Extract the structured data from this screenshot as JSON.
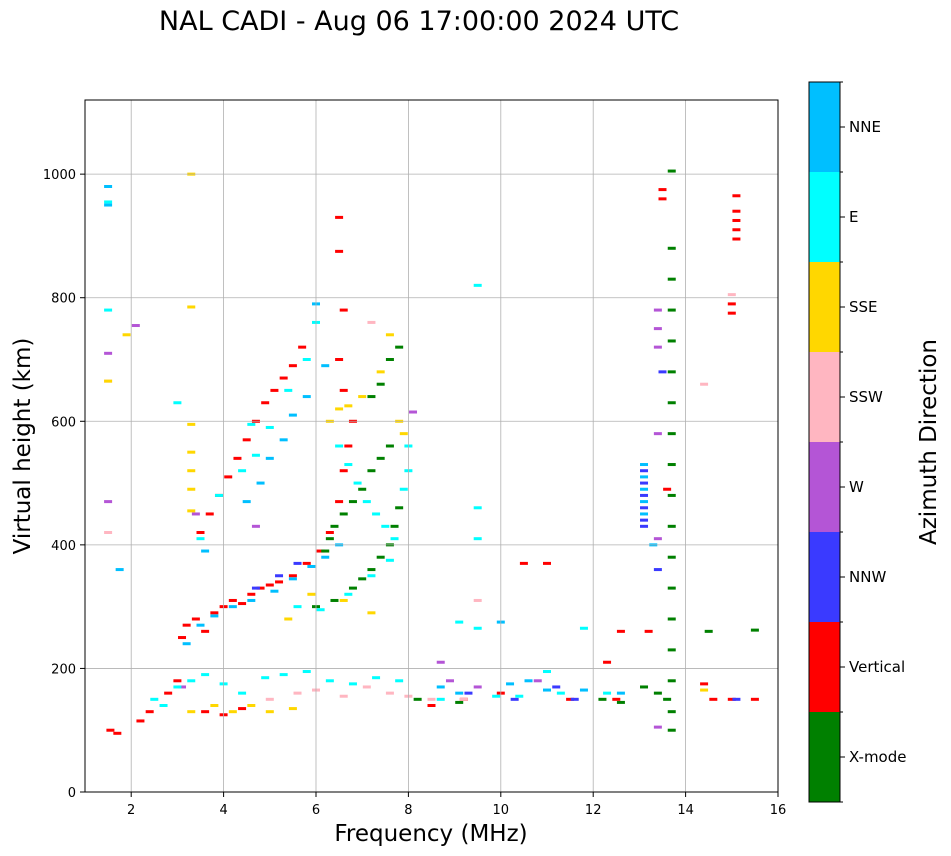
{
  "chart_data": {
    "type": "scatter",
    "title": "NAL CADI - Aug 06 17:00:00 2024 UTC",
    "xlabel": "Frequency (MHz)",
    "ylabel": "Virtual height (km)",
    "xlim": [
      1,
      16
    ],
    "ylim": [
      0,
      1120
    ],
    "xticks": [
      2,
      4,
      6,
      8,
      10,
      12,
      14,
      16
    ],
    "yticks": [
      0,
      200,
      400,
      600,
      800,
      1000
    ],
    "grid": true,
    "colorbar": {
      "label": "Azimuth Direction",
      "categories": [
        {
          "name": "X-mode",
          "color": "#008000"
        },
        {
          "name": "Vertical",
          "color": "#ff0000"
        },
        {
          "name": "NNW",
          "color": "#3a3aff"
        },
        {
          "name": "W",
          "color": "#b455d6"
        },
        {
          "name": "SSW",
          "color": "#ffb6c1"
        },
        {
          "name": "SSE",
          "color": "#ffd700"
        },
        {
          "name": "E",
          "color": "#00ffff"
        },
        {
          "name": "NNE",
          "color": "#00bfff"
        }
      ]
    },
    "series": [
      {
        "name": "Vertical",
        "points": [
          [
            1.55,
            100
          ],
          [
            1.7,
            95
          ],
          [
            2.2,
            115
          ],
          [
            2.4,
            130
          ],
          [
            2.8,
            160
          ],
          [
            3.0,
            180
          ],
          [
            3.1,
            250
          ],
          [
            3.2,
            270
          ],
          [
            3.4,
            280
          ],
          [
            3.6,
            260
          ],
          [
            3.8,
            290
          ],
          [
            4.0,
            300
          ],
          [
            4.2,
            310
          ],
          [
            4.4,
            305
          ],
          [
            4.6,
            320
          ],
          [
            4.8,
            330
          ],
          [
            5.0,
            335
          ],
          [
            5.2,
            340
          ],
          [
            5.5,
            350
          ],
          [
            5.8,
            370
          ],
          [
            6.1,
            390
          ],
          [
            6.3,
            420
          ],
          [
            6.5,
            470
          ],
          [
            6.6,
            520
          ],
          [
            6.7,
            560
          ],
          [
            6.8,
            600
          ],
          [
            6.6,
            650
          ],
          [
            6.5,
            700
          ],
          [
            6.6,
            780
          ],
          [
            3.5,
            420
          ],
          [
            3.7,
            450
          ],
          [
            3.9,
            480
          ],
          [
            4.1,
            510
          ],
          [
            4.3,
            540
          ],
          [
            4.5,
            570
          ],
          [
            4.7,
            600
          ],
          [
            4.9,
            630
          ],
          [
            5.1,
            650
          ],
          [
            5.3,
            670
          ],
          [
            5.5,
            690
          ],
          [
            5.7,
            720
          ],
          [
            3.6,
            130
          ],
          [
            4.0,
            125
          ],
          [
            4.4,
            135
          ],
          [
            8.5,
            140
          ],
          [
            9.2,
            150
          ],
          [
            10.5,
            370
          ],
          [
            11.0,
            370
          ],
          [
            10.0,
            160
          ],
          [
            11.5,
            150
          ],
          [
            12.5,
            150
          ],
          [
            12.6,
            260
          ],
          [
            13.2,
            260
          ],
          [
            12.3,
            210
          ],
          [
            13.6,
            490
          ],
          [
            13.5,
            960
          ],
          [
            13.5,
            975
          ],
          [
            14.4,
            175
          ],
          [
            14.6,
            150
          ],
          [
            15.0,
            150
          ],
          [
            15.5,
            150
          ],
          [
            15.1,
            895
          ],
          [
            15.1,
            910
          ],
          [
            15.1,
            925
          ],
          [
            15.1,
            940
          ],
          [
            15.1,
            965
          ],
          [
            15.0,
            790
          ],
          [
            15.0,
            775
          ],
          [
            6.5,
            875
          ],
          [
            6.5,
            930
          ]
        ]
      },
      {
        "name": "X-mode",
        "points": [
          [
            6.2,
            390
          ],
          [
            6.3,
            410
          ],
          [
            6.4,
            430
          ],
          [
            6.6,
            450
          ],
          [
            6.8,
            470
          ],
          [
            7.0,
            490
          ],
          [
            7.2,
            520
          ],
          [
            7.4,
            540
          ],
          [
            7.6,
            560
          ],
          [
            6.8,
            330
          ],
          [
            7.0,
            345
          ],
          [
            7.2,
            360
          ],
          [
            7.4,
            380
          ],
          [
            7.6,
            400
          ],
          [
            7.7,
            430
          ],
          [
            7.8,
            460
          ],
          [
            6.0,
            300
          ],
          [
            6.4,
            310
          ],
          [
            7.2,
            640
          ],
          [
            7.4,
            660
          ],
          [
            7.6,
            700
          ],
          [
            7.8,
            720
          ],
          [
            12.2,
            150
          ],
          [
            12.6,
            145
          ],
          [
            13.1,
            170
          ],
          [
            13.4,
            160
          ],
          [
            13.6,
            150
          ],
          [
            13.7,
            100
          ],
          [
            13.7,
            130
          ],
          [
            13.7,
            180
          ],
          [
            13.7,
            230
          ],
          [
            13.7,
            280
          ],
          [
            13.7,
            330
          ],
          [
            13.7,
            380
          ],
          [
            13.7,
            430
          ],
          [
            13.7,
            480
          ],
          [
            13.7,
            530
          ],
          [
            13.7,
            580
          ],
          [
            13.7,
            630
          ],
          [
            13.7,
            680
          ],
          [
            13.7,
            730
          ],
          [
            13.7,
            780
          ],
          [
            13.7,
            830
          ],
          [
            13.7,
            880
          ],
          [
            13.7,
            1005
          ],
          [
            14.5,
            260
          ],
          [
            15.5,
            262
          ],
          [
            8.2,
            150
          ],
          [
            9.1,
            145
          ]
        ]
      },
      {
        "name": "NNW",
        "points": [
          [
            13.1,
            440
          ],
          [
            13.1,
            460
          ],
          [
            13.1,
            480
          ],
          [
            13.1,
            500
          ],
          [
            13.1,
            520
          ],
          [
            13.1,
            430
          ],
          [
            13.4,
            360
          ],
          [
            13.5,
            680
          ],
          [
            9.3,
            160
          ],
          [
            10.3,
            150
          ],
          [
            11.2,
            170
          ],
          [
            11.6,
            150
          ],
          [
            4.7,
            330
          ],
          [
            5.2,
            350
          ],
          [
            5.6,
            370
          ],
          [
            15.1,
            150
          ]
        ]
      },
      {
        "name": "W",
        "points": [
          [
            13.4,
            720
          ],
          [
            13.4,
            750
          ],
          [
            13.4,
            780
          ],
          [
            13.4,
            580
          ],
          [
            13.4,
            410
          ],
          [
            13.4,
            105
          ],
          [
            8.7,
            210
          ],
          [
            8.9,
            180
          ],
          [
            9.5,
            170
          ],
          [
            10.8,
            180
          ],
          [
            8.1,
            615
          ],
          [
            4.7,
            430
          ],
          [
            1.5,
            470
          ],
          [
            1.5,
            710
          ],
          [
            2.1,
            755
          ],
          [
            3.1,
            170
          ],
          [
            3.4,
            450
          ]
        ]
      },
      {
        "name": "SSW",
        "points": [
          [
            5.0,
            150
          ],
          [
            5.6,
            160
          ],
          [
            6.0,
            165
          ],
          [
            6.6,
            155
          ],
          [
            7.1,
            170
          ],
          [
            7.6,
            160
          ],
          [
            8.0,
            155
          ],
          [
            8.5,
            150
          ],
          [
            9.2,
            150
          ],
          [
            9.5,
            310
          ],
          [
            1.5,
            420
          ],
          [
            1.5,
            665
          ],
          [
            7.2,
            760
          ],
          [
            14.4,
            660
          ],
          [
            15.0,
            805
          ]
        ]
      },
      {
        "name": "SSE",
        "points": [
          [
            3.3,
            1000
          ],
          [
            3.3,
            595
          ],
          [
            3.3,
            550
          ],
          [
            3.3,
            520
          ],
          [
            3.3,
            490
          ],
          [
            3.3,
            455
          ],
          [
            3.3,
            130
          ],
          [
            3.8,
            140
          ],
          [
            4.2,
            130
          ],
          [
            4.6,
            140
          ],
          [
            5.0,
            130
          ],
          [
            5.5,
            135
          ],
          [
            6.3,
            600
          ],
          [
            6.5,
            620
          ],
          [
            6.7,
            625
          ],
          [
            7.0,
            640
          ],
          [
            7.4,
            680
          ],
          [
            7.6,
            740
          ],
          [
            7.9,
            580
          ],
          [
            7.8,
            600
          ],
          [
            5.4,
            280
          ],
          [
            5.9,
            320
          ],
          [
            6.6,
            310
          ],
          [
            7.2,
            290
          ],
          [
            1.5,
            665
          ],
          [
            1.9,
            740
          ],
          [
            3.3,
            785
          ],
          [
            14.4,
            165
          ]
        ]
      },
      {
        "name": "E",
        "points": [
          [
            2.5,
            150
          ],
          [
            2.7,
            140
          ],
          [
            3.0,
            170
          ],
          [
            3.3,
            180
          ],
          [
            3.6,
            190
          ],
          [
            4.0,
            175
          ],
          [
            4.4,
            160
          ],
          [
            4.9,
            185
          ],
          [
            5.3,
            190
          ],
          [
            5.8,
            195
          ],
          [
            6.3,
            180
          ],
          [
            6.8,
            175
          ],
          [
            7.3,
            185
          ],
          [
            7.8,
            180
          ],
          [
            8.7,
            150
          ],
          [
            9.1,
            275
          ],
          [
            9.5,
            265
          ],
          [
            9.9,
            155
          ],
          [
            10.4,
            155
          ],
          [
            11.0,
            195
          ],
          [
            11.3,
            160
          ],
          [
            11.8,
            265
          ],
          [
            12.3,
            160
          ],
          [
            6.0,
            760
          ],
          [
            5.8,
            700
          ],
          [
            5.4,
            650
          ],
          [
            5.0,
            590
          ],
          [
            4.7,
            545
          ],
          [
            4.4,
            520
          ],
          [
            3.9,
            480
          ],
          [
            3.5,
            410
          ],
          [
            6.5,
            560
          ],
          [
            6.7,
            530
          ],
          [
            6.9,
            500
          ],
          [
            7.1,
            470
          ],
          [
            7.3,
            450
          ],
          [
            7.5,
            430
          ],
          [
            7.7,
            410
          ],
          [
            7.9,
            490
          ],
          [
            8.0,
            560
          ],
          [
            8.0,
            520
          ],
          [
            5.6,
            300
          ],
          [
            6.1,
            295
          ],
          [
            6.7,
            320
          ],
          [
            7.2,
            350
          ],
          [
            7.6,
            375
          ],
          [
            9.5,
            460
          ],
          [
            9.5,
            410
          ],
          [
            9.5,
            820
          ],
          [
            1.5,
            780
          ],
          [
            1.5,
            955
          ],
          [
            3.0,
            630
          ],
          [
            4.6,
            595
          ]
        ]
      },
      {
        "name": "NNE",
        "points": [
          [
            3.2,
            240
          ],
          [
            3.5,
            270
          ],
          [
            3.8,
            285
          ],
          [
            4.2,
            300
          ],
          [
            4.6,
            310
          ],
          [
            5.1,
            325
          ],
          [
            5.5,
            345
          ],
          [
            5.9,
            365
          ],
          [
            6.2,
            380
          ],
          [
            6.5,
            400
          ],
          [
            4.5,
            470
          ],
          [
            4.8,
            500
          ],
          [
            5.0,
            540
          ],
          [
            5.3,
            570
          ],
          [
            5.5,
            610
          ],
          [
            5.8,
            640
          ],
          [
            6.2,
            690
          ],
          [
            6.0,
            790
          ],
          [
            13.1,
            530
          ],
          [
            13.1,
            510
          ],
          [
            13.1,
            490
          ],
          [
            13.1,
            470
          ],
          [
            13.1,
            450
          ],
          [
            13.3,
            400
          ],
          [
            1.5,
            980
          ],
          [
            1.5,
            950
          ],
          [
            1.75,
            360
          ],
          [
            3.6,
            390
          ],
          [
            8.7,
            170
          ],
          [
            9.1,
            160
          ],
          [
            10.2,
            175
          ],
          [
            10.6,
            180
          ],
          [
            11.0,
            165
          ],
          [
            11.8,
            165
          ],
          [
            12.6,
            160
          ],
          [
            10.0,
            275
          ]
        ]
      }
    ]
  }
}
